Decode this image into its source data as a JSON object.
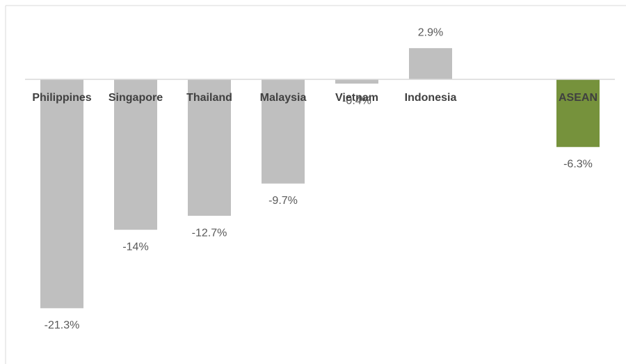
{
  "chart_data": {
    "type": "bar",
    "categories": [
      "Philippines",
      "Singapore",
      "Thailand",
      "Malaysia",
      "Vietnam",
      "Indonesia",
      null,
      "ASEAN"
    ],
    "values": [
      -21.3,
      -14,
      -12.7,
      -9.7,
      -0.4,
      2.9,
      null,
      -6.3
    ],
    "value_labels": [
      "-21.3%",
      "-14%",
      "-12.7%",
      "-9.7%",
      "-0.4%",
      "2.9%",
      null,
      "-6.3%"
    ],
    "colors": [
      "#bfbfbf",
      "#bfbfbf",
      "#bfbfbf",
      "#bfbfbf",
      "#bfbfbf",
      "#bfbfbf",
      null,
      "#76923c"
    ],
    "ylim": [
      -25,
      6
    ],
    "grid": false
  }
}
